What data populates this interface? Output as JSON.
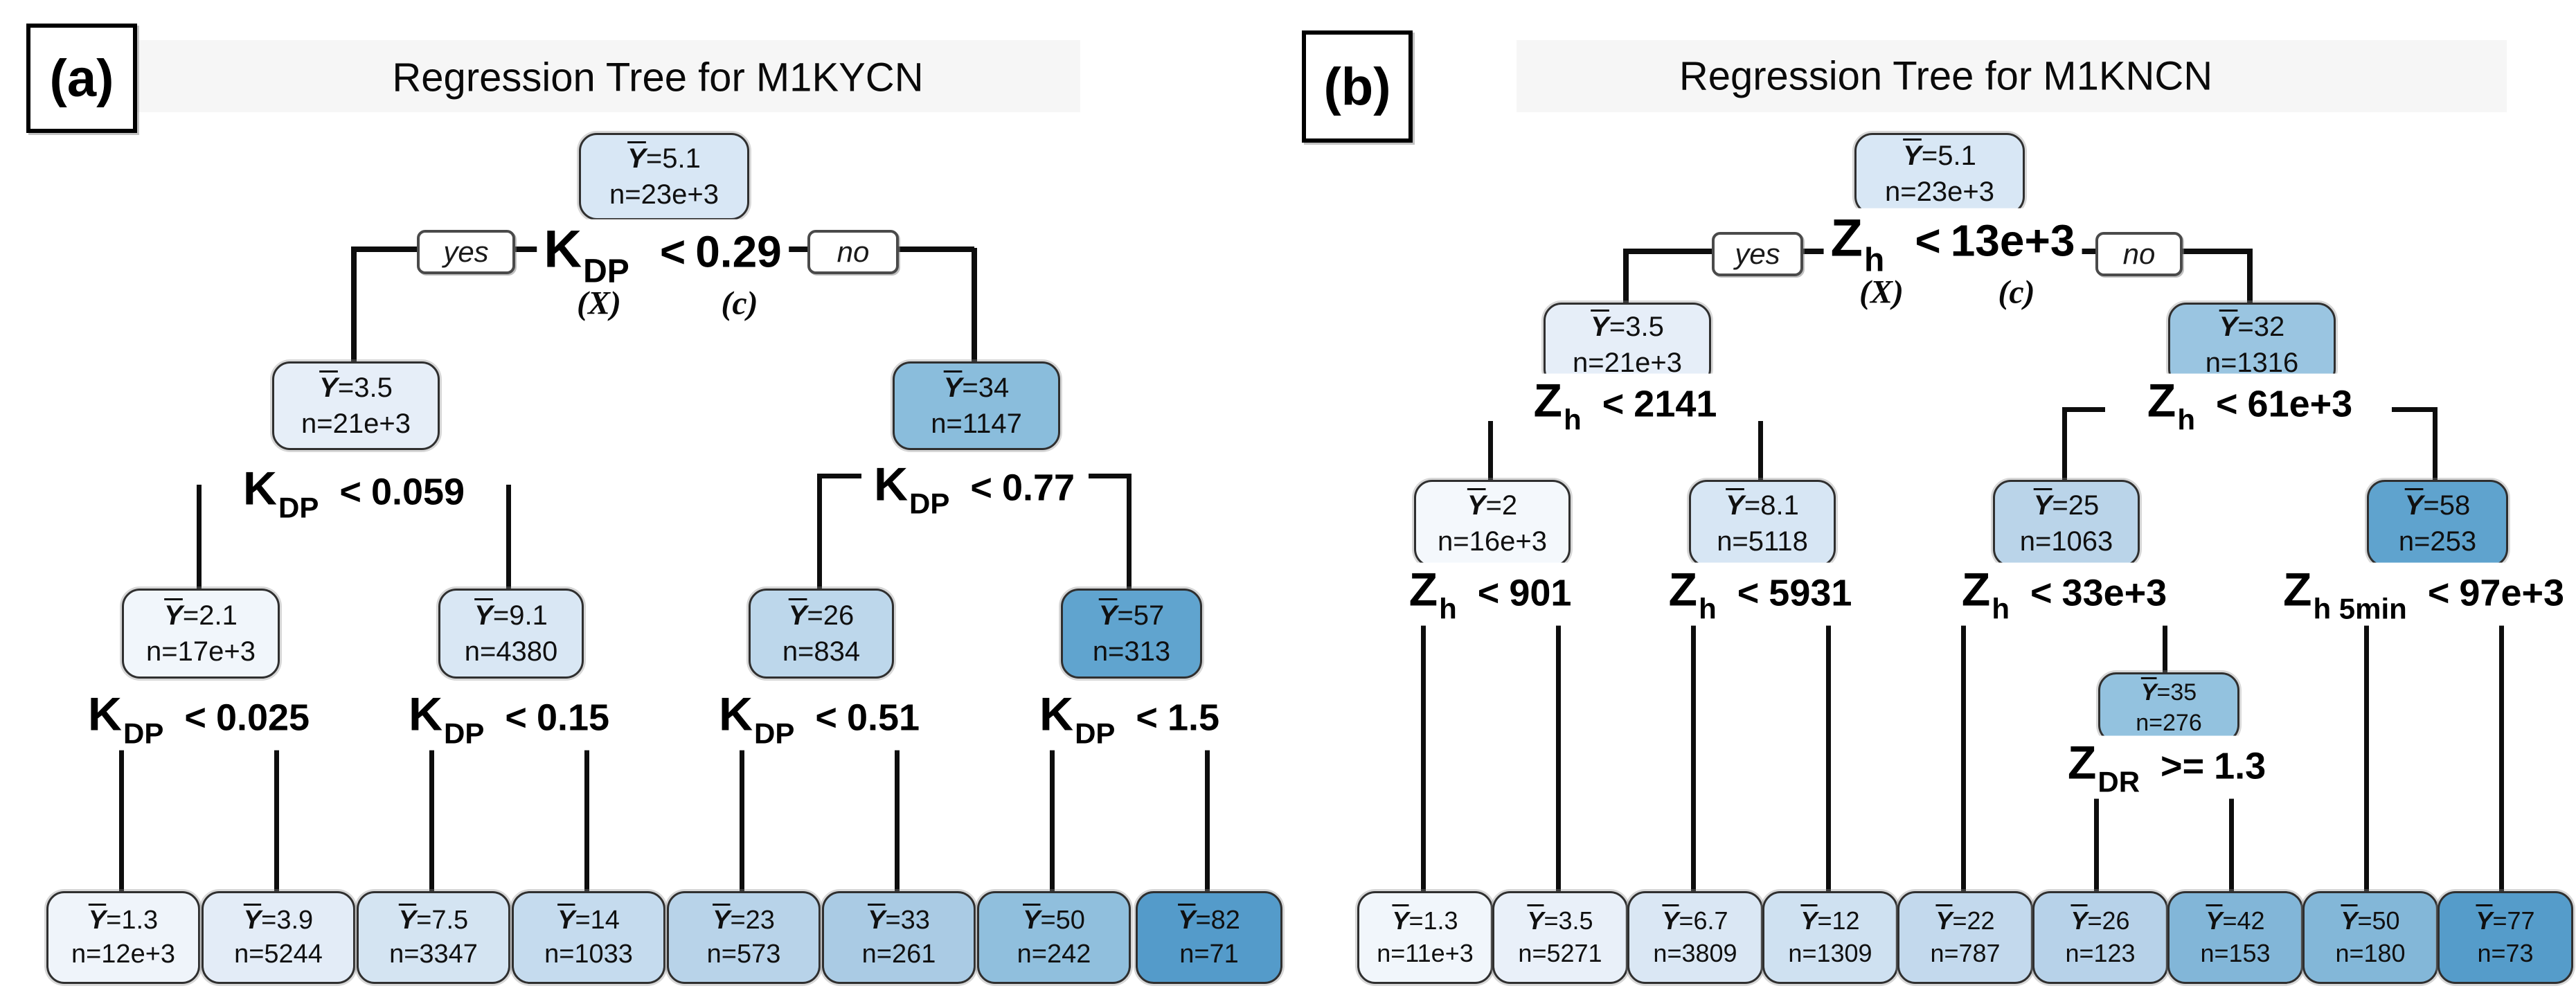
{
  "figure": {
    "symbols": {
      "mean": "Y",
      "eq": "=",
      "count_prefix": "n="
    },
    "panels": [
      {
        "id": "a",
        "tag": "(a)",
        "title": "Regression Tree for M1KYCN",
        "branch_labels": {
          "yes": "yes",
          "no": "no"
        },
        "root_annotations": {
          "x": "(X)",
          "c": "(c)"
        },
        "nodes": [
          {
            "id": "root",
            "ybar": "5.1",
            "n": "23e+3",
            "fill": "#d8e7f5"
          },
          {
            "id": "n35",
            "ybar": "3.5",
            "n": "21e+3",
            "fill": "#e6eef8"
          },
          {
            "id": "n34",
            "ybar": "34",
            "n": "1147",
            "fill": "#8abddc"
          },
          {
            "id": "n21",
            "ybar": "2.1",
            "n": "17e+3",
            "fill": "#f1f6fb"
          },
          {
            "id": "n91",
            "ybar": "9.1",
            "n": "4380",
            "fill": "#d9e7f4"
          },
          {
            "id": "n26",
            "ybar": "26",
            "n": "834",
            "fill": "#bdd7eb"
          },
          {
            "id": "n57",
            "ybar": "57",
            "n": "313",
            "fill": "#60a4cf"
          },
          {
            "id": "L1",
            "ybar": "1.3",
            "n": "12e+3",
            "fill": "#eff4fa"
          },
          {
            "id": "L2",
            "ybar": "3.9",
            "n": "5244",
            "fill": "#e3ecf7"
          },
          {
            "id": "L3",
            "ybar": "7.5",
            "n": "3347",
            "fill": "#d4e4f2"
          },
          {
            "id": "L4",
            "ybar": "14",
            "n": "1033",
            "fill": "#c5dbee"
          },
          {
            "id": "L5",
            "ybar": "23",
            "n": "573",
            "fill": "#b8d3e9"
          },
          {
            "id": "L6",
            "ybar": "33",
            "n": "261",
            "fill": "#aacbe4"
          },
          {
            "id": "L7",
            "ybar": "50",
            "n": "242",
            "fill": "#90bfdd"
          },
          {
            "id": "L8",
            "ybar": "82",
            "n": "71",
            "fill": "#549bca"
          }
        ],
        "splits": [
          {
            "id": "sroot",
            "variable": "K",
            "subscript": "DP",
            "op": "<",
            "value": "0.29"
          },
          {
            "id": "sl",
            "variable": "K",
            "subscript": "DP",
            "op": "<",
            "value": "0.059"
          },
          {
            "id": "sr",
            "variable": "K",
            "subscript": "DP",
            "op": "<",
            "value": "0.77"
          },
          {
            "id": "sll",
            "variable": "K",
            "subscript": "DP",
            "op": "<",
            "value": "0.025"
          },
          {
            "id": "slr",
            "variable": "K",
            "subscript": "DP",
            "op": "<",
            "value": "0.15"
          },
          {
            "id": "srl",
            "variable": "K",
            "subscript": "DP",
            "op": "<",
            "value": "0.51"
          },
          {
            "id": "srr",
            "variable": "K",
            "subscript": "DP",
            "op": "<",
            "value": "1.5"
          }
        ]
      },
      {
        "id": "b",
        "tag": "(b)",
        "title": "Regression Tree for M1KNCN",
        "branch_labels": {
          "yes": "yes",
          "no": "no"
        },
        "root_annotations": {
          "x": "(X)",
          "c": "(c)"
        },
        "nodes": [
          {
            "id": "root",
            "ybar": "5.1",
            "n": "23e+3",
            "fill": "#d8e7f5"
          },
          {
            "id": "n35b",
            "ybar": "3.5",
            "n": "21e+3",
            "fill": "#e6eef8"
          },
          {
            "id": "n32",
            "ybar": "32",
            "n": "1316",
            "fill": "#9ac5e1"
          },
          {
            "id": "n2",
            "ybar": "2",
            "n": "16e+3",
            "fill": "#f4f8fc"
          },
          {
            "id": "n81",
            "ybar": "8.1",
            "n": "5118",
            "fill": "#d7e6f4"
          },
          {
            "id": "n25",
            "ybar": "25",
            "n": "1063",
            "fill": "#bad4e9"
          },
          {
            "id": "n58",
            "ybar": "58",
            "n": "253",
            "fill": "#5fa3ce"
          },
          {
            "id": "n35x",
            "ybar": "35",
            "n": "276",
            "fill": "#93c2df"
          },
          {
            "id": "L1",
            "ybar": "1.3",
            "n": "11e+3",
            "fill": "#f1f6fb"
          },
          {
            "id": "L2",
            "ybar": "3.5",
            "n": "5271",
            "fill": "#e9f0f9"
          },
          {
            "id": "L3",
            "ybar": "6.7",
            "n": "3809",
            "fill": "#dae7f4"
          },
          {
            "id": "L4",
            "ybar": "12",
            "n": "1309",
            "fill": "#cfe1f1"
          },
          {
            "id": "L5",
            "ybar": "22",
            "n": "787",
            "fill": "#c3d9ed"
          },
          {
            "id": "L6",
            "ybar": "26",
            "n": "123",
            "fill": "#b7d2e9"
          },
          {
            "id": "L7",
            "ybar": "42",
            "n": "153",
            "fill": "#82b6d8"
          },
          {
            "id": "L8",
            "ybar": "50",
            "n": "180",
            "fill": "#83b7d8"
          },
          {
            "id": "L9",
            "ybar": "77",
            "n": "73",
            "fill": "#559cca"
          }
        ],
        "splits": [
          {
            "id": "sroot",
            "variable": "Z",
            "subscript": "h",
            "op": "<",
            "value": "13e+3"
          },
          {
            "id": "sl",
            "variable": "Z",
            "subscript": "h",
            "op": "<",
            "value": "2141"
          },
          {
            "id": "sr",
            "variable": "Z",
            "subscript": "h",
            "op": "<",
            "value": "61e+3"
          },
          {
            "id": "sll",
            "variable": "Z",
            "subscript": "h",
            "op": "<",
            "value": "901"
          },
          {
            "id": "slr",
            "variable": "Z",
            "subscript": "h",
            "op": "<",
            "value": "5931"
          },
          {
            "id": "srl",
            "variable": "Z",
            "subscript": "h",
            "op": "<",
            "value": "33e+3"
          },
          {
            "id": "srr",
            "variable": "Z",
            "subscript": "h 5min",
            "op": "<",
            "value": "97e+3"
          },
          {
            "id": "szdr",
            "variable": "Z",
            "subscript": "DR",
            "op": ">=",
            "value": "1.3"
          }
        ]
      }
    ]
  }
}
